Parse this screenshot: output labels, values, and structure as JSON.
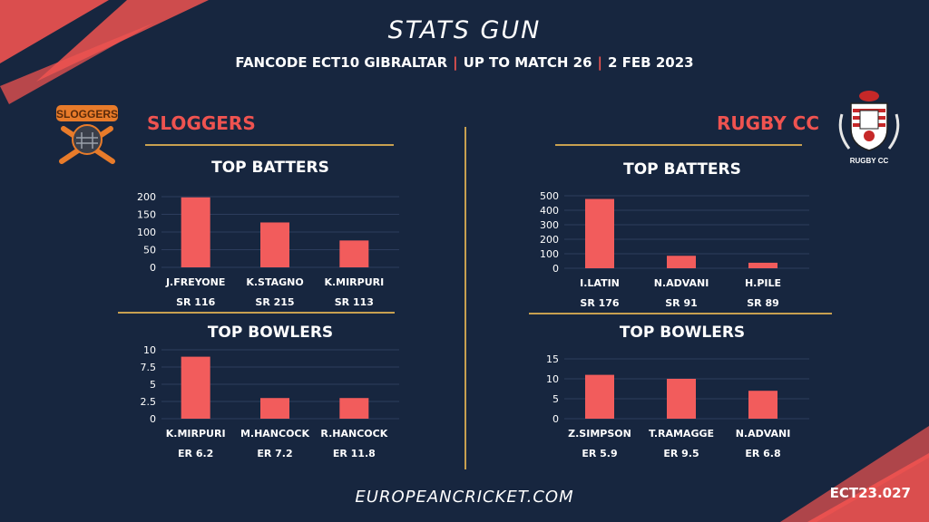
{
  "header": {
    "title": "STATS GUN",
    "subtitle_parts": [
      "FANCODE ECT10 GIBRALTAR",
      "UP TO MATCH  26",
      "2 FEB 2023"
    ]
  },
  "teams": {
    "left": {
      "name": "SLOGGERS",
      "logo_text": "SLOGGERS"
    },
    "right": {
      "name": "RUGBY CC",
      "logo_text": "RUGBY CC"
    }
  },
  "sections": {
    "batters_title": "TOP BATTERS",
    "bowlers_title": "TOP BOWLERS"
  },
  "footer": {
    "site": "EUROPEANCRICKET.COM",
    "code": "ECT23.027"
  },
  "colors": {
    "bar": "#f25c5c",
    "accent": "#ef5350",
    "gold": "#c8a050",
    "background": "#17263f"
  },
  "chart_data": [
    {
      "id": "sloggers-batters",
      "type": "bar",
      "title": "TOP BATTERS",
      "categories": [
        "J.FREYONE",
        "K.STAGNO",
        "K.MIRPURI"
      ],
      "values": [
        198,
        127,
        76
      ],
      "sublabels": [
        "SR 116",
        "SR 215",
        "SR 113"
      ],
      "ylim": [
        0,
        200
      ],
      "yticks": [
        "0",
        "50",
        "100",
        "150",
        "200"
      ],
      "ytick_values": [
        0,
        50,
        100,
        150,
        200
      ]
    },
    {
      "id": "sloggers-bowlers",
      "type": "bar",
      "title": "TOP BOWLERS",
      "categories": [
        "K.MIRPURI",
        "M.HANCOCK",
        "R.HANCOCK"
      ],
      "values": [
        9,
        3,
        3
      ],
      "sublabels": [
        "ER 6.2",
        "ER 7.2",
        "ER 11.8"
      ],
      "ylim": [
        0,
        10
      ],
      "yticks": [
        "0",
        "2.5",
        "5",
        "7.5",
        "10"
      ],
      "ytick_values": [
        0,
        2.5,
        5,
        7.5,
        10
      ]
    },
    {
      "id": "rugby-batters",
      "type": "bar",
      "title": "TOP BATTERS",
      "categories": [
        "I.LATIN",
        "N.ADVANI",
        "H.PILE"
      ],
      "values": [
        478,
        86,
        38
      ],
      "sublabels": [
        "SR 176",
        "SR 91",
        "SR 89"
      ],
      "ylim": [
        0,
        500
      ],
      "yticks": [
        "0",
        "100",
        "200",
        "300",
        "400",
        "500"
      ],
      "ytick_values": [
        0,
        100,
        200,
        300,
        400,
        500
      ]
    },
    {
      "id": "rugby-bowlers",
      "type": "bar",
      "title": "TOP BOWLERS",
      "categories": [
        "Z.SIMPSON",
        "T.RAMAGGE",
        "N.ADVANI"
      ],
      "values": [
        11,
        10,
        7
      ],
      "sublabels": [
        "ER 5.9",
        "ER 9.5",
        "ER 6.8"
      ],
      "ylim": [
        0,
        15
      ],
      "yticks": [
        "0",
        "5",
        "10",
        "15"
      ],
      "ytick_values": [
        0,
        5,
        10,
        15
      ]
    }
  ]
}
